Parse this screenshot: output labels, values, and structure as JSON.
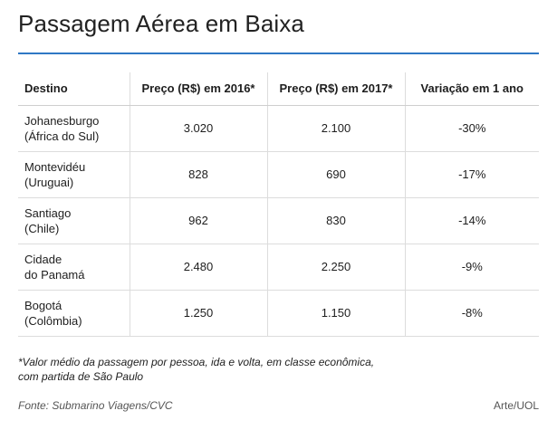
{
  "header": {
    "title": "Passagem Aérea em Baixa",
    "rule_color": "#2f78c4"
  },
  "table": {
    "columns": [
      "Destino",
      "Preço (R$) em 2016*",
      "Preço (R$) em 2017*",
      "Variação em 1 ano"
    ],
    "rows": [
      {
        "destino": [
          "Johanesburgo",
          "(África do Sul)"
        ],
        "preco_2016": "3.020",
        "preco_2017": "2.100",
        "variacao": "-30%"
      },
      {
        "destino": [
          "Montevidéu",
          "(Uruguai)"
        ],
        "preco_2016": "828",
        "preco_2017": "690",
        "variacao": "-17%"
      },
      {
        "destino": [
          "Santiago",
          "(Chile)"
        ],
        "preco_2016": "962",
        "preco_2017": "830",
        "variacao": "-14%"
      },
      {
        "destino": [
          "Cidade",
          "do Panamá"
        ],
        "preco_2016": "2.480",
        "preco_2017": "2.250",
        "variacao": "-9%"
      },
      {
        "destino": [
          "Bogotá",
          "(Colômbia)"
        ],
        "preco_2016": "1.250",
        "preco_2017": "1.150",
        "variacao": "-8%"
      }
    ]
  },
  "footnote": [
    "*Valor médio da passagem por pessoa, ida e volta, em classe econômica,",
    "com partida de São Paulo"
  ],
  "source": "Fonte: Submarino Viagens/CVC",
  "credit": "Arte/UOL"
}
